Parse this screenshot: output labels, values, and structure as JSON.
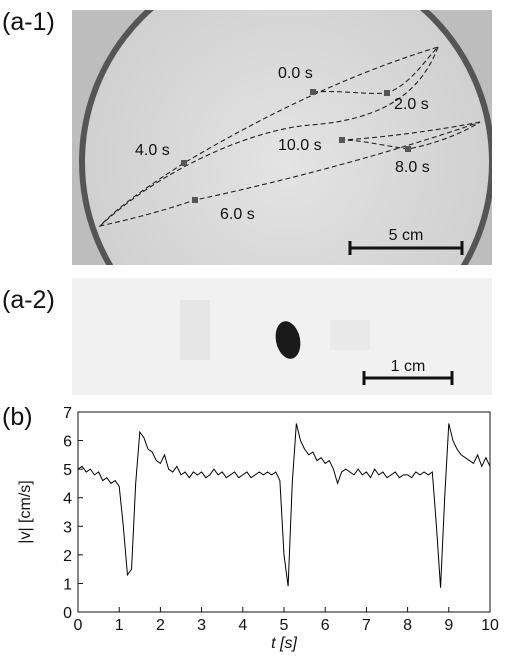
{
  "panel_a1": {
    "label": "(a-1)",
    "time_labels": [
      "0.0 s",
      "2.0 s",
      "4.0 s",
      "10.0 s",
      "8.0 s",
      "6.0 s"
    ],
    "scale_bar": "5 cm"
  },
  "panel_a2": {
    "label": "(a-2)",
    "scale_bar": "1 cm"
  },
  "panel_b": {
    "label": "(b)"
  },
  "chart_data": {
    "type": "line",
    "xlabel": "t [s]",
    "ylabel": "|v| [cm/s]",
    "x": [
      0,
      0.1,
      0.2,
      0.3,
      0.4,
      0.5,
      0.6,
      0.7,
      0.8,
      0.9,
      1,
      1.1,
      1.2,
      1.3,
      1.4,
      1.5,
      1.6,
      1.7,
      1.8,
      1.9,
      2,
      2.1,
      2.2,
      2.3,
      2.4,
      2.5,
      2.6,
      2.7,
      2.8,
      2.9,
      3,
      3.1,
      3.2,
      3.3,
      3.4,
      3.5,
      3.6,
      3.7,
      3.8,
      3.9,
      4,
      4.1,
      4.2,
      4.3,
      4.4,
      4.5,
      4.6,
      4.7,
      4.8,
      4.9,
      5,
      5.1,
      5.2,
      5.3,
      5.4,
      5.5,
      5.6,
      5.7,
      5.8,
      5.9,
      6,
      6.1,
      6.2,
      6.3,
      6.4,
      6.5,
      6.6,
      6.7,
      6.8,
      6.9,
      7,
      7.1,
      7.2,
      7.3,
      7.4,
      7.5,
      7.6,
      7.7,
      7.8,
      7.9,
      8,
      8.1,
      8.2,
      8.3,
      8.4,
      8.5,
      8.6,
      8.7,
      8.8,
      8.9,
      9,
      9.1,
      9.2,
      9.3,
      9.4,
      9.5,
      9.6,
      9.7,
      9.8,
      9.9,
      10
    ],
    "values": [
      5.0,
      5.1,
      4.9,
      5.0,
      4.8,
      4.9,
      4.6,
      4.7,
      4.5,
      4.6,
      4.4,
      3.0,
      1.3,
      1.5,
      4.5,
      6.3,
      6.1,
      5.7,
      5.6,
      5.3,
      5.2,
      5.5,
      5.0,
      4.9,
      5.1,
      4.8,
      4.9,
      4.7,
      4.9,
      4.8,
      4.9,
      4.7,
      4.8,
      5.0,
      4.8,
      4.9,
      4.7,
      4.8,
      4.9,
      4.7,
      4.8,
      4.9,
      4.7,
      4.8,
      4.9,
      4.8,
      4.9,
      4.8,
      4.9,
      4.6,
      2.0,
      0.9,
      4.5,
      6.6,
      6.0,
      5.7,
      5.5,
      5.6,
      5.3,
      5.4,
      5.2,
      5.3,
      5.0,
      4.5,
      4.9,
      5.0,
      4.9,
      4.8,
      5.0,
      4.8,
      4.9,
      4.7,
      5.0,
      4.8,
      4.9,
      4.7,
      4.8,
      4.9,
      4.7,
      4.8,
      4.8,
      4.7,
      4.9,
      4.8,
      4.9,
      4.8,
      4.9,
      3.0,
      0.85,
      4.0,
      6.6,
      6.0,
      5.7,
      5.5,
      5.4,
      5.3,
      5.2,
      5.5,
      5.1,
      5.4,
      5.1
    ],
    "color": "#000000",
    "xlim": [
      0,
      10
    ],
    "xticks": [
      0,
      1,
      2,
      3,
      4,
      5,
      6,
      7,
      8,
      9,
      10
    ],
    "ylim": [
      0,
      7
    ],
    "yticks": [
      0,
      1,
      2,
      3,
      4,
      5,
      6,
      7
    ]
  }
}
